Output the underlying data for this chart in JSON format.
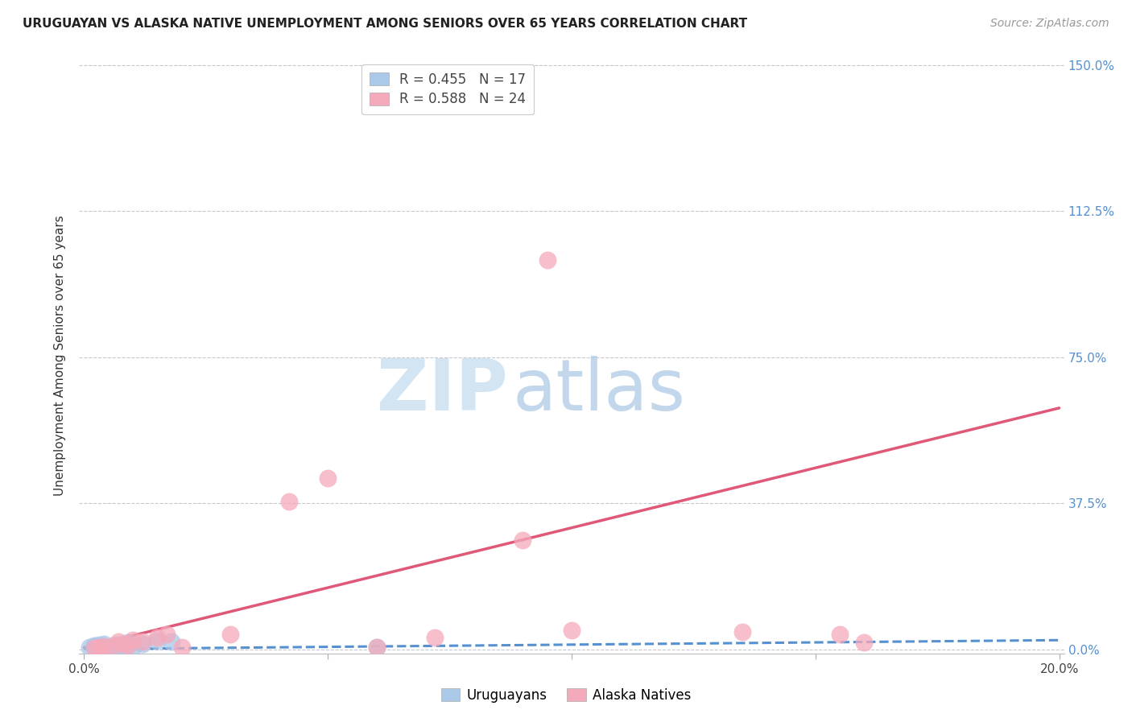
{
  "title": "URUGUAYAN VS ALASKA NATIVE UNEMPLOYMENT AMONG SENIORS OVER 65 YEARS CORRELATION CHART",
  "source": "Source: ZipAtlas.com",
  "ylabel": "Unemployment Among Seniors over 65 years",
  "xlim": [
    -0.001,
    0.201
  ],
  "ylim": [
    -0.01,
    1.52
  ],
  "yticks": [
    0.0,
    0.375,
    0.75,
    1.125,
    1.5
  ],
  "ytick_labels": [
    "0.0%",
    "37.5%",
    "75.0%",
    "112.5%",
    "150.0%"
  ],
  "xtick_positions": [
    0.0,
    0.05,
    0.1,
    0.15,
    0.2
  ],
  "xtick_labels": [
    "0.0%",
    "",
    "",
    "",
    "20.0%"
  ],
  "uruguayan_R": "0.455",
  "uruguayan_N": "17",
  "alaskan_R": "0.588",
  "alaskan_N": "24",
  "uruguayan_color": "#aac8e8",
  "alaskan_color": "#f5aabb",
  "uruguayan_line_color": "#5590d0",
  "alaskan_line_color": "#e05878",
  "watermark_zip_color": "#cce4f4",
  "watermark_atlas_color": "#c0d8ee",
  "uruguayan_x": [
    0.001,
    0.002,
    0.002,
    0.003,
    0.003,
    0.004,
    0.004,
    0.005,
    0.006,
    0.007,
    0.008,
    0.009,
    0.01,
    0.012,
    0.015,
    0.018,
    0.06
  ],
  "uruguayan_y": [
    0.005,
    0.007,
    0.01,
    0.005,
    0.012,
    0.008,
    0.015,
    0.005,
    0.01,
    0.012,
    0.006,
    0.018,
    0.005,
    0.015,
    0.022,
    0.02,
    0.005
  ],
  "alaskan_x": [
    0.002,
    0.003,
    0.004,
    0.006,
    0.007,
    0.008,
    0.009,
    0.01,
    0.012,
    0.015,
    0.017,
    0.02,
    0.03,
    0.042,
    0.05,
    0.06,
    0.072,
    0.09,
    0.1,
    0.135,
    0.155,
    0.16,
    0.003,
    0.095
  ],
  "alaskan_y": [
    0.003,
    0.005,
    0.007,
    0.01,
    0.02,
    0.015,
    0.01,
    0.025,
    0.02,
    0.03,
    0.04,
    0.005,
    0.038,
    0.38,
    0.44,
    0.005,
    0.03,
    0.28,
    0.05,
    0.045,
    0.04,
    0.018,
    0.003,
    1.0
  ],
  "uruguayan_trend_x": [
    0.0,
    0.2
  ],
  "uruguayan_trend_y": [
    0.001,
    0.024
  ],
  "alaskan_trend_x": [
    0.0,
    0.2
  ],
  "alaskan_trend_y": [
    0.005,
    0.62
  ],
  "title_fontsize": 11,
  "source_fontsize": 10,
  "tick_fontsize": 11,
  "ylabel_fontsize": 11,
  "legend_fontsize": 12
}
